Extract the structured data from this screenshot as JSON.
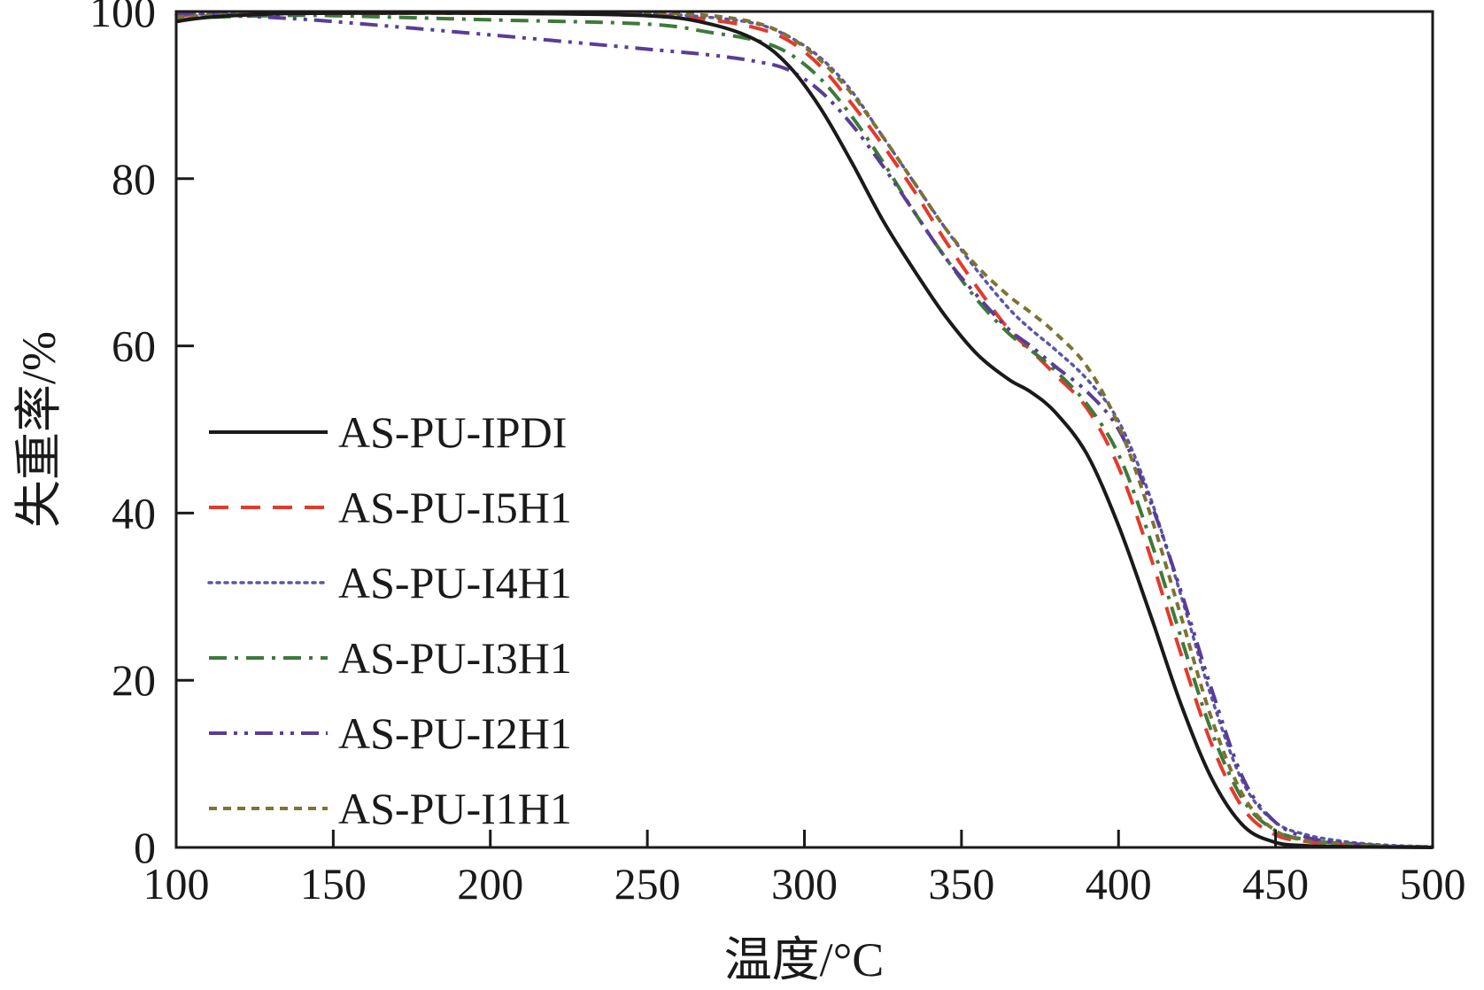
{
  "chart_data": {
    "type": "line",
    "xlabel": "温度/°C",
    "ylabel": "失重率/%",
    "xlim": [
      100,
      500
    ],
    "ylim": [
      0,
      100
    ],
    "xticks": [
      100,
      150,
      200,
      250,
      300,
      350,
      400,
      450,
      500
    ],
    "yticks": [
      0,
      20,
      40,
      60,
      80,
      100
    ],
    "grid": false,
    "legend_position": "left",
    "series": [
      {
        "name": "AS-PU-IPDI",
        "color": "#1a1a1a",
        "dash": "solid",
        "x": [
          100,
          110,
          130,
          150,
          200,
          250,
          270,
          285,
          295,
          305,
          315,
          325,
          335,
          345,
          355,
          365,
          372,
          380,
          390,
          400,
          410,
          420,
          430,
          440,
          450,
          460,
          470,
          480,
          490,
          500
        ],
        "y": [
          98.8,
          99.3,
          99.7,
          99.8,
          99.8,
          99.5,
          98.5,
          96.5,
          93.5,
          88.5,
          82,
          75,
          69,
          63.5,
          59,
          56,
          54.5,
          52,
          47,
          38.5,
          28,
          17,
          8,
          2.5,
          0.6,
          0.2,
          0.1,
          0.05,
          0.02,
          0
        ]
      },
      {
        "name": "AS-PU-I5H1",
        "color": "#e23b2e",
        "dash": "long-dash",
        "x": [
          100,
          110,
          130,
          150,
          200,
          250,
          270,
          285,
          295,
          305,
          315,
          325,
          335,
          345,
          355,
          365,
          372,
          380,
          390,
          400,
          410,
          420,
          430,
          440,
          450,
          460,
          470,
          480,
          490,
          500
        ],
        "y": [
          99.5,
          99.7,
          99.8,
          99.8,
          99.8,
          99.6,
          99,
          98,
          96.5,
          93.5,
          89,
          84,
          78.5,
          72.5,
          67,
          62,
          59.5,
          56.5,
          52.5,
          45.5,
          35,
          23,
          12,
          4.5,
          1.5,
          0.7,
          0.4,
          0.2,
          0.1,
          0.05
        ]
      },
      {
        "name": "AS-PU-I4H1",
        "color": "#5a55a8",
        "dash": "dotted",
        "x": [
          100,
          110,
          130,
          150,
          200,
          250,
          270,
          285,
          295,
          305,
          315,
          325,
          335,
          345,
          355,
          365,
          372,
          380,
          390,
          400,
          410,
          420,
          430,
          440,
          450,
          460,
          470,
          480,
          490,
          500
        ],
        "y": [
          99.6,
          99.7,
          99.8,
          99.8,
          99.8,
          99.7,
          99.3,
          98.5,
          97,
          94.5,
          90.5,
          85,
          79.5,
          74,
          69,
          64.5,
          62,
          59.5,
          56,
          51,
          42,
          30,
          17.5,
          7.5,
          3,
          1.5,
          0.8,
          0.4,
          0.2,
          0.1
        ]
      },
      {
        "name": "AS-PU-I3H1",
        "color": "#3d7a3a",
        "dash": "dash-dot",
        "x": [
          100,
          110,
          130,
          150,
          200,
          250,
          270,
          285,
          295,
          305,
          315,
          325,
          335,
          345,
          355,
          365,
          372,
          380,
          390,
          400,
          410,
          420,
          430,
          440,
          450,
          460,
          470,
          480,
          490,
          500
        ],
        "y": [
          99.0,
          99.3,
          99.5,
          99.5,
          99,
          98.5,
          97.5,
          96.5,
          95,
          92,
          87.5,
          82,
          76,
          70.5,
          65.5,
          61.5,
          59.5,
          57,
          53,
          47,
          37,
          25,
          13.5,
          5.5,
          2,
          0.9,
          0.5,
          0.3,
          0.1,
          0.05
        ]
      },
      {
        "name": "AS-PU-I2H1",
        "color": "#5a3d96",
        "dash": "dash-dot-dot",
        "x": [
          100,
          110,
          130,
          150,
          200,
          250,
          270,
          285,
          295,
          305,
          315,
          325,
          335,
          345,
          355,
          365,
          372,
          380,
          390,
          400,
          410,
          420,
          430,
          440,
          450,
          460,
          470,
          480,
          490,
          500
        ],
        "y": [
          99.8,
          99.7,
          99.3,
          98.8,
          97.2,
          95.5,
          94.8,
          94,
          93,
          90.5,
          86.5,
          81.5,
          76,
          70.5,
          66,
          62,
          60,
          57.5,
          54.5,
          50,
          41.5,
          30.5,
          18.5,
          8,
          3,
          1.2,
          0.6,
          0.3,
          0.1,
          0.05
        ]
      },
      {
        "name": "AS-PU-I1H1",
        "color": "#7d7332",
        "dash": "short-dash",
        "x": [
          100,
          110,
          130,
          150,
          200,
          250,
          270,
          285,
          295,
          305,
          315,
          325,
          335,
          345,
          355,
          365,
          372,
          380,
          390,
          400,
          410,
          420,
          430,
          440,
          450,
          460,
          470,
          480,
          490,
          500
        ],
        "y": [
          99.3,
          99.5,
          99.7,
          99.8,
          99.8,
          99.8,
          99.5,
          98.6,
          97,
          94.2,
          90.2,
          85,
          79.5,
          74,
          69.5,
          66,
          64,
          61.5,
          57.5,
          50.5,
          40,
          27.5,
          15,
          6,
          2,
          0.8,
          0.4,
          0.2,
          0.1,
          0.05
        ]
      }
    ]
  }
}
